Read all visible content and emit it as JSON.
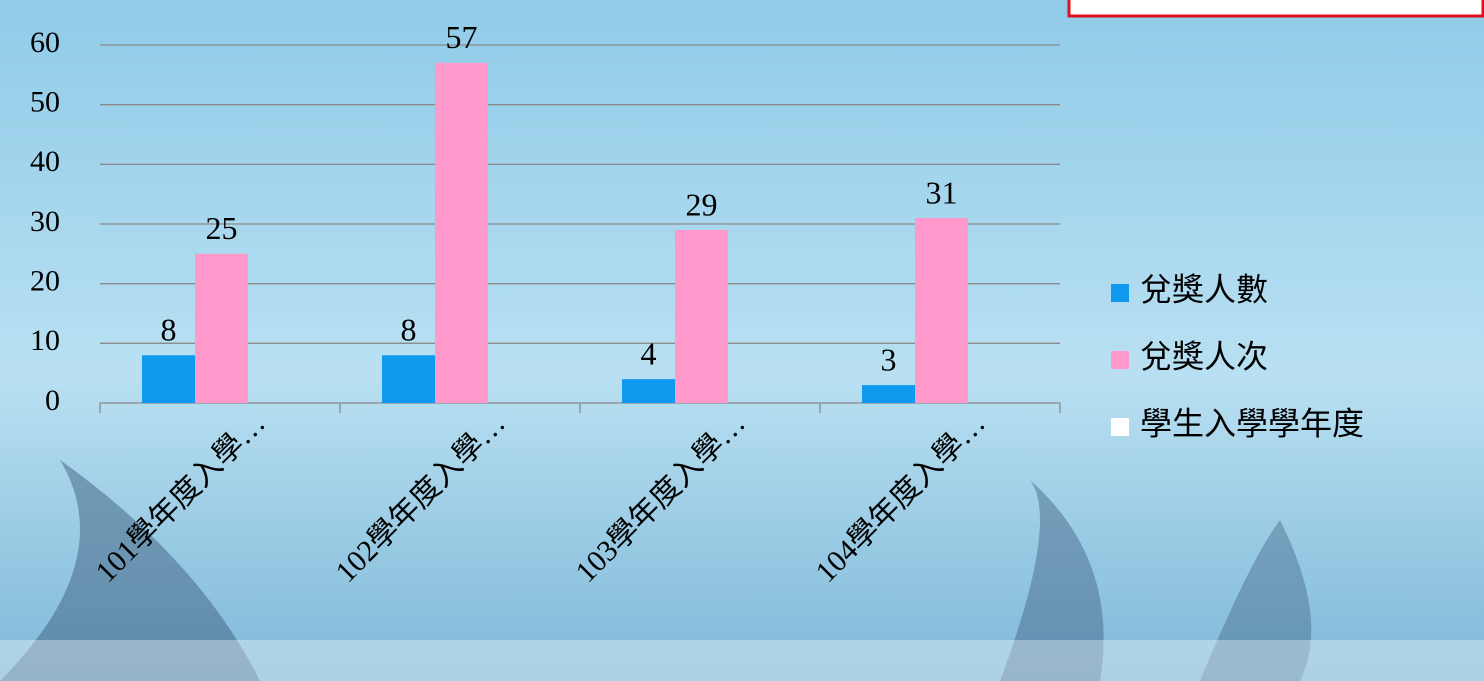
{
  "chart_data": {
    "type": "bar",
    "categories": [
      "101學年度入學…",
      "102學年度入學…",
      "103學年度入學…",
      "104學年度入學…"
    ],
    "series": [
      {
        "name": "兌獎人數",
        "color": "#0f9af0",
        "values": [
          8,
          8,
          4,
          3
        ]
      },
      {
        "name": "兌獎人次",
        "color": "#ff99cc",
        "values": [
          25,
          57,
          29,
          31
        ]
      },
      {
        "name": "學生入學學年度",
        "color": "#ffffff",
        "values": [
          null,
          null,
          null,
          null
        ]
      }
    ],
    "ylim": [
      0,
      60
    ],
    "yticks": [
      0,
      10,
      20,
      30,
      40,
      50,
      60
    ],
    "grid": true,
    "legend": "right"
  }
}
